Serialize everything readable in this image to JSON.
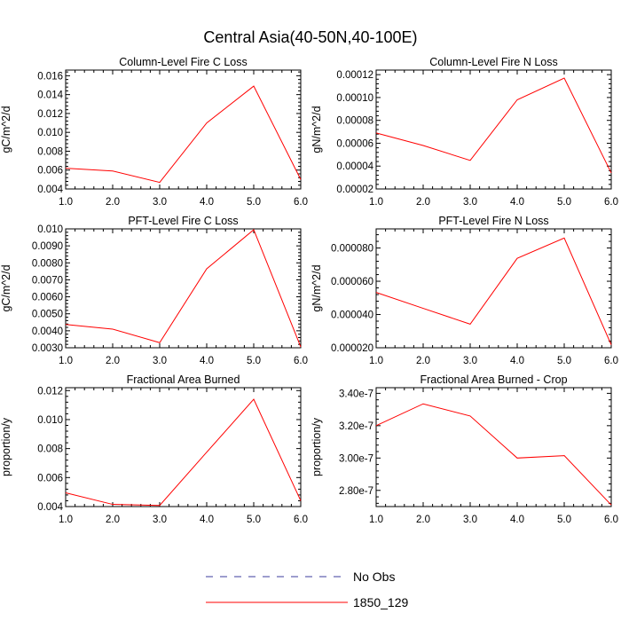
{
  "figure": {
    "title": "Central Asia(40-50N,40-100E)"
  },
  "legend": [
    {
      "label": "No Obs",
      "color": "#3b3b9c",
      "dash": "dashed"
    },
    {
      "label": "1850_129",
      "color": "#ff0000",
      "dash": "solid"
    }
  ],
  "chart_data": [
    {
      "type": "line",
      "title": "Column-Level Fire C Loss",
      "ylabel": "gC/m^2/d",
      "x": [
        1.0,
        2.0,
        3.0,
        4.0,
        5.0,
        6.0
      ],
      "xlim": [
        1.0,
        6.0
      ],
      "xticks": [
        "1.0",
        "2.0",
        "3.0",
        "4.0",
        "5.0",
        "6.0"
      ],
      "ylim": [
        0.004,
        0.0166
      ],
      "yticks": [
        0.004,
        0.006,
        0.008,
        0.01,
        0.012,
        0.014,
        0.016
      ],
      "ytick_labels": [
        "0.004",
        "0.006",
        "0.008",
        "0.010",
        "0.012",
        "0.014",
        "0.016"
      ],
      "series": [
        {
          "name": "1850_129",
          "color": "#ff0000",
          "values": [
            0.0062,
            0.0059,
            0.0047,
            0.011,
            0.0149,
            0.005
          ]
        }
      ]
    },
    {
      "type": "line",
      "title": "Column-Level Fire N Loss",
      "ylabel": "gN/m^2/d",
      "x": [
        1.0,
        2.0,
        3.0,
        4.0,
        5.0,
        6.0
      ],
      "xlim": [
        1.0,
        6.0
      ],
      "xticks": [
        "1.0",
        "2.0",
        "3.0",
        "4.0",
        "5.0",
        "6.0"
      ],
      "ylim": [
        2e-05,
        0.000124
      ],
      "yticks": [
        2e-05,
        4e-05,
        6e-05,
        8e-05,
        0.0001,
        0.00012
      ],
      "ytick_labels": [
        "0.00002",
        "0.00004",
        "0.00006",
        "0.00008",
        "0.00010",
        "0.00012"
      ],
      "series": [
        {
          "name": "1850_129",
          "color": "#ff0000",
          "values": [
            6.9e-05,
            5.8e-05,
            4.5e-05,
            9.8e-05,
            0.000117,
            3.4e-05
          ]
        }
      ]
    },
    {
      "type": "line",
      "title": "PFT-Level Fire C Loss",
      "ylabel": "gC/m^2/d",
      "x": [
        1.0,
        2.0,
        3.0,
        4.0,
        5.0,
        6.0
      ],
      "xlim": [
        1.0,
        6.0
      ],
      "xticks": [
        "1.0",
        "2.0",
        "3.0",
        "4.0",
        "5.0",
        "6.0"
      ],
      "ylim": [
        0.003,
        0.01
      ],
      "yticks": [
        0.003,
        0.004,
        0.005,
        0.006,
        0.007,
        0.008,
        0.009,
        0.01
      ],
      "ytick_labels": [
        "0.0030",
        "0.0040",
        "0.0050",
        "0.0060",
        "0.0070",
        "0.0080",
        "0.0090",
        "0.010"
      ],
      "series": [
        {
          "name": "1850_129",
          "color": "#ff0000",
          "values": [
            0.00437,
            0.0041,
            0.0033,
            0.00765,
            0.00995,
            0.00305
          ]
        }
      ]
    },
    {
      "type": "line",
      "title": "PFT-Level Fire N Loss",
      "ylabel": "gN/m^2/d",
      "x": [
        1.0,
        2.0,
        3.0,
        4.0,
        5.0,
        6.0
      ],
      "xlim": [
        1.0,
        6.0
      ],
      "xticks": [
        "1.0",
        "2.0",
        "3.0",
        "4.0",
        "5.0",
        "6.0"
      ],
      "ylim": [
        2e-05,
        9.15e-05
      ],
      "yticks": [
        2e-05,
        4e-05,
        6e-05,
        8e-05
      ],
      "ytick_labels": [
        "0.000020",
        "0.000040",
        "0.000060",
        "0.000080"
      ],
      "series": [
        {
          "name": "1850_129",
          "color": "#ff0000",
          "values": [
            5.33e-05,
            4.37e-05,
            3.42e-05,
            7.38e-05,
            8.6e-05,
            2.18e-05
          ]
        }
      ]
    },
    {
      "type": "line",
      "title": "Fractional Area Burned",
      "ylabel": "proportion/y",
      "x": [
        1.0,
        2.0,
        3.0,
        4.0,
        5.0,
        6.0
      ],
      "xlim": [
        1.0,
        6.0
      ],
      "xticks": [
        "1.0",
        "2.0",
        "3.0",
        "4.0",
        "5.0",
        "6.0"
      ],
      "ylim": [
        0.004,
        0.0122
      ],
      "yticks": [
        0.004,
        0.006,
        0.008,
        0.01,
        0.012
      ],
      "ytick_labels": [
        "0.004",
        "0.006",
        "0.008",
        "0.010",
        "0.012"
      ],
      "series": [
        {
          "name": "1850_129",
          "color": "#ff0000",
          "values": [
            0.00495,
            0.00415,
            0.00408,
            0.00775,
            0.0114,
            0.0044
          ]
        }
      ]
    },
    {
      "type": "line",
      "title": "Fractional Area Burned - Crop",
      "ylabel": "proportion/y",
      "x": [
        1.0,
        2.0,
        3.0,
        4.0,
        5.0,
        6.0
      ],
      "xlim": [
        1.0,
        6.0
      ],
      "xticks": [
        "1.0",
        "2.0",
        "3.0",
        "4.0",
        "5.0",
        "6.0"
      ],
      "ylim": [
        2.7e-07,
        3.435e-07
      ],
      "yticks": [
        2.8e-07,
        3e-07,
        3.2e-07,
        3.4e-07
      ],
      "ytick_labels": [
        "2.80e-7",
        "3.00e-7",
        "3.20e-7",
        "3.40e-7"
      ],
      "series": [
        {
          "name": "1850_129",
          "color": "#ff0000",
          "values": [
            3.2e-07,
            3.335e-07,
            3.26e-07,
            3e-07,
            3.015e-07,
            2.71e-07
          ]
        }
      ]
    }
  ]
}
